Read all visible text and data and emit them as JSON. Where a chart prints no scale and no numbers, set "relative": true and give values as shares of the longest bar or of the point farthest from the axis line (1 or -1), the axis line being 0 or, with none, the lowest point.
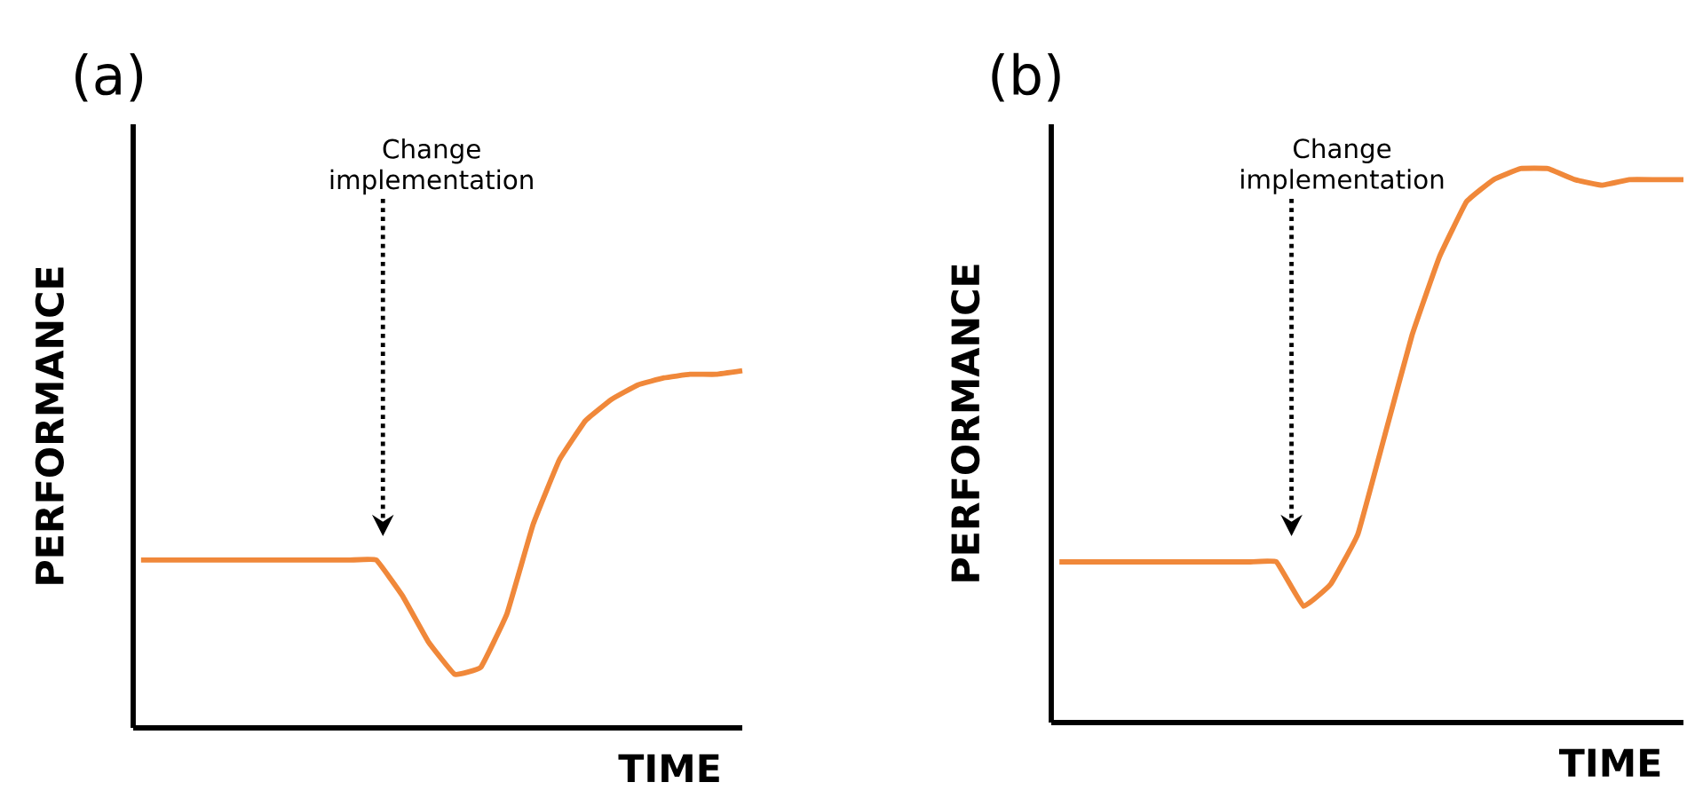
{
  "chart_data": [
    {
      "type": "line",
      "title": "(a)",
      "xlabel": "TIME",
      "ylabel": "PERFORMANCE",
      "relative": true,
      "annotations": [
        "Change implementation"
      ],
      "categories": [
        null,
        null,
        null,
        null,
        null,
        null,
        null,
        null,
        null,
        null,
        null,
        null,
        null,
        null,
        null,
        null,
        null,
        null,
        null,
        null,
        null,
        null,
        null,
        null
      ],
      "series": [
        {
          "color": "#f0883a",
          "values": [
            0.47,
            0.47,
            0.47,
            0.47,
            0.47,
            0.47,
            0.47,
            0.47,
            0.47,
            0.47,
            0.37,
            0.24,
            0.15,
            0.17,
            0.32,
            0.57,
            0.75,
            0.86,
            0.92,
            0.96,
            0.98,
            0.99,
            0.99,
            1
          ]
        }
      ]
    },
    {
      "type": "line",
      "title": "(b)",
      "xlabel": "TIME",
      "ylabel": "PERFORMANCE",
      "relative": true,
      "annotations": [
        "Change implementation"
      ],
      "categories": [
        null,
        null,
        null,
        null,
        null,
        null,
        null,
        null,
        null,
        null,
        null,
        null,
        null,
        null,
        null,
        null,
        null,
        null,
        null,
        null,
        null,
        null,
        null,
        null
      ],
      "series": [
        {
          "color": "#f0883a",
          "values": [
            0.29,
            0.29,
            0.29,
            0.29,
            0.29,
            0.29,
            0.29,
            0.29,
            0.29,
            0.21,
            0.25,
            0.34,
            0.52,
            0.7,
            0.84,
            0.94,
            0.98,
            1,
            1,
            0.98,
            0.97,
            0.98,
            0.98,
            0.98
          ]
        }
      ]
    }
  ]
}
